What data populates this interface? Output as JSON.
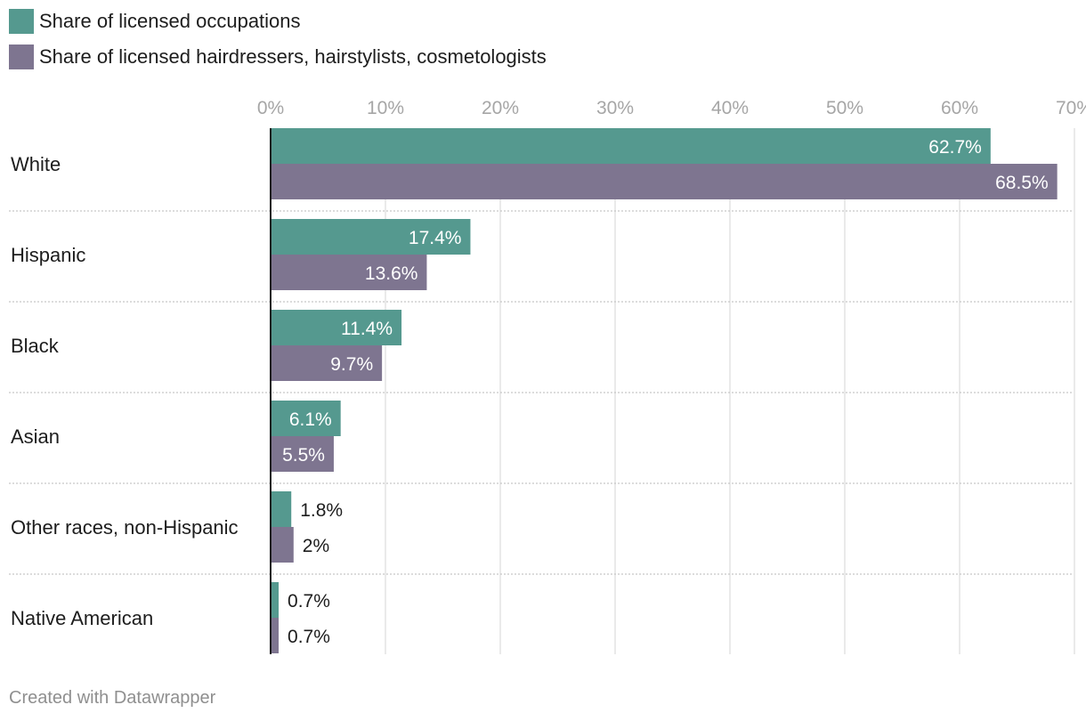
{
  "legend": {
    "items": [
      {
        "label": "Share of licensed occupations",
        "color": "#55998f"
      },
      {
        "label": "Share of licensed hairdressers, hairstylists, cosmetologists",
        "color": "#7e7590"
      }
    ]
  },
  "chart_data": {
    "type": "bar",
    "orientation": "horizontal",
    "categories": [
      "White",
      "Hispanic",
      "Black",
      "Asian",
      "Other races, non-Hispanic",
      "Native American"
    ],
    "series": [
      {
        "name": "Share of licensed occupations",
        "values": [
          62.7,
          17.4,
          11.4,
          6.1,
          1.8,
          0.7
        ],
        "labels": [
          "62.7%",
          "17.4%",
          "11.4%",
          "6.1%",
          "1.8%",
          "0.7%"
        ],
        "color": "#55998f"
      },
      {
        "name": "Share of licensed hairdressers, hairstylists, cosmetologists",
        "values": [
          68.5,
          13.6,
          9.7,
          5.5,
          2,
          0.7
        ],
        "labels": [
          "68.5%",
          "13.6%",
          "9.7%",
          "5.5%",
          "2%",
          "0.7%"
        ],
        "color": "#7e7590"
      }
    ],
    "xlim": [
      0,
      70
    ],
    "xticks": [
      0,
      10,
      20,
      30,
      40,
      50,
      60,
      70
    ],
    "xtick_labels": [
      "0%",
      "10%",
      "20%",
      "30%",
      "40%",
      "50%",
      "60%",
      "70%"
    ],
    "axis_position": "top",
    "grid": true,
    "legend_position": "top-left"
  },
  "footer": {
    "credit": "Created with Datawrapper"
  }
}
